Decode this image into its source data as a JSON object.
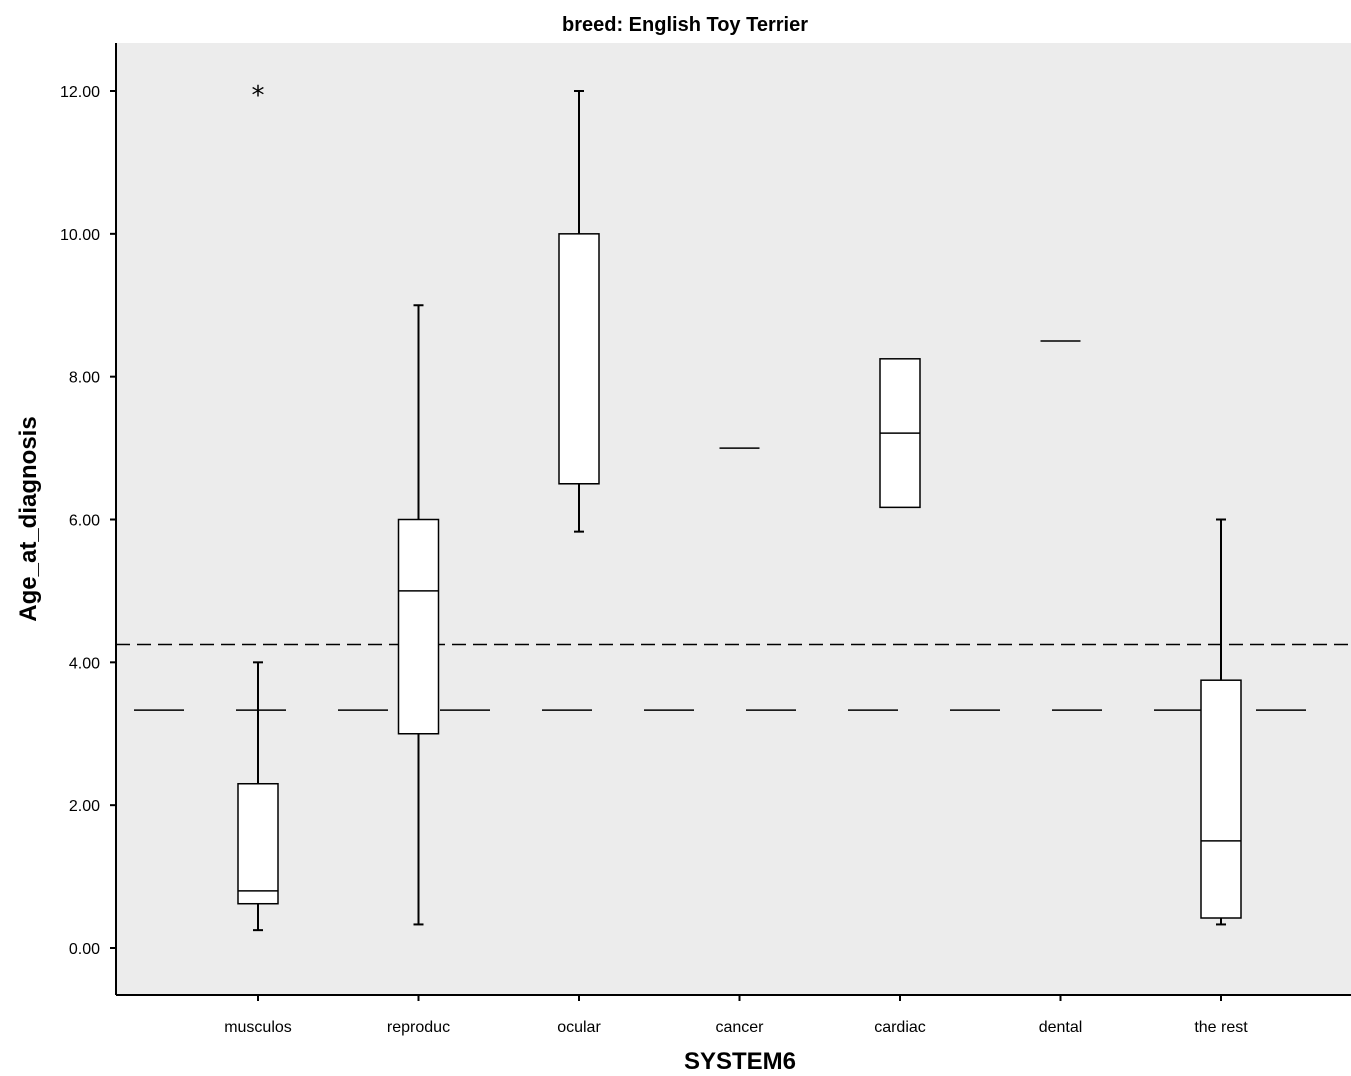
{
  "chart_data": {
    "type": "box",
    "title": "breed: English Toy Terrier",
    "xlabel": "SYSTEM6",
    "ylabel": "Age_at_diagnosis",
    "ylim": [
      -0.65,
      12.7
    ],
    "yticks": [
      "0.00",
      "2.00",
      "4.00",
      "6.00",
      "8.00",
      "10.00",
      "12.00"
    ],
    "grid": false,
    "categories": [
      "musculos",
      "reproduc",
      "ocular",
      "cancer",
      "cardiac",
      "dental",
      "the rest"
    ],
    "boxes": [
      {
        "category": "musculos",
        "min": 0.25,
        "q1": 0.62,
        "median": 0.8,
        "q3": 2.3,
        "max": 4.0,
        "outliers": [
          12.0
        ]
      },
      {
        "category": "reproduc",
        "min": 0.33,
        "q1": 3.0,
        "median": 5.0,
        "q3": 6.0,
        "max": 9.0,
        "outliers": []
      },
      {
        "category": "ocular",
        "min": 5.83,
        "q1": 6.5,
        "median": 6.5,
        "q3": 10.0,
        "max": 12.0,
        "outliers": []
      },
      {
        "category": "cancer",
        "min": 7.0,
        "q1": 7.0,
        "median": 7.0,
        "q3": 7.0,
        "max": 7.0,
        "outliers": []
      },
      {
        "category": "cardiac",
        "min": 6.17,
        "q1": 6.17,
        "median": 7.21,
        "q3": 8.25,
        "max": 8.25,
        "outliers": []
      },
      {
        "category": "dental",
        "min": 8.5,
        "q1": 8.5,
        "median": 8.5,
        "q3": 8.5,
        "max": 8.5,
        "outliers": []
      },
      {
        "category": "the rest",
        "min": 0.33,
        "q1": 0.42,
        "median": 1.5,
        "q3": 3.75,
        "max": 6.0,
        "outliers": []
      }
    ],
    "reference_lines": [
      {
        "y": 4.25,
        "style": "short-dash"
      },
      {
        "y": 3.33,
        "style": "long-dash"
      }
    ],
    "colors": {
      "plot_background": "#ececec",
      "box_fill": "#ffffff",
      "stroke": "#000000"
    }
  }
}
